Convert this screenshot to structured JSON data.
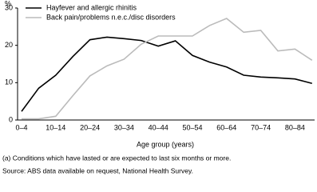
{
  "chart_data": {
    "type": "line",
    "ylabel": "%",
    "xlabel": "Age group (years)",
    "categories": [
      "0–4",
      null,
      "10–14",
      null,
      "20–24",
      null,
      "30–34",
      null,
      "40–44",
      null,
      "50–54",
      null,
      "60–64",
      null,
      "70–74",
      null,
      "80–84",
      null
    ],
    "series": [
      {
        "name": "Hayfever and allergic rhinitis",
        "color": "#000000",
        "values": [
          2.3,
          8.5,
          12,
          17,
          21.5,
          22.2,
          21.8,
          21.3,
          19.8,
          21.2,
          17.3,
          15.5,
          14.2,
          12,
          11.5,
          11.3,
          11,
          9.8
        ]
      },
      {
        "name": "Back pain/problems n.e.c./disc disorders",
        "color": "#bbbbbb",
        "values": [
          0.3,
          0.3,
          1,
          6.5,
          11.8,
          14.5,
          16.3,
          20.3,
          22.5,
          22.5,
          22.5,
          25.3,
          27.2,
          23.5,
          24,
          18.5,
          19,
          16
        ]
      }
    ],
    "ylim": [
      0,
      30
    ],
    "yticks": [
      0,
      10,
      20,
      30
    ],
    "legend": "top-left",
    "footnotes": [
      "(a) Conditions which have lasted or are expected to last six months or more.",
      "Source: ABS data available on request, National Health Survey."
    ]
  }
}
